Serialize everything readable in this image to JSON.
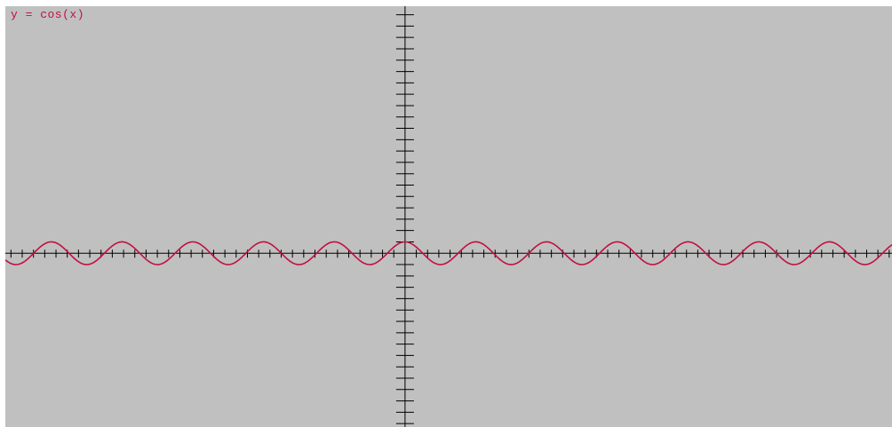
{
  "colors": {
    "background": "#c0c0c0",
    "axis": "#000000",
    "curve": "#c01040",
    "label": "#c01040"
  },
  "chart_data": {
    "type": "line",
    "title": "y = cos(x)",
    "function": "cos",
    "xlim": [
      -35.5,
      43.25
    ],
    "ylim": [
      -15.3,
      21.75
    ],
    "x_tick_step": 1,
    "y_tick_step": 1,
    "grid": false,
    "series": [
      {
        "function": "cos",
        "amplitude": 1,
        "period": 6.2832
      }
    ]
  }
}
